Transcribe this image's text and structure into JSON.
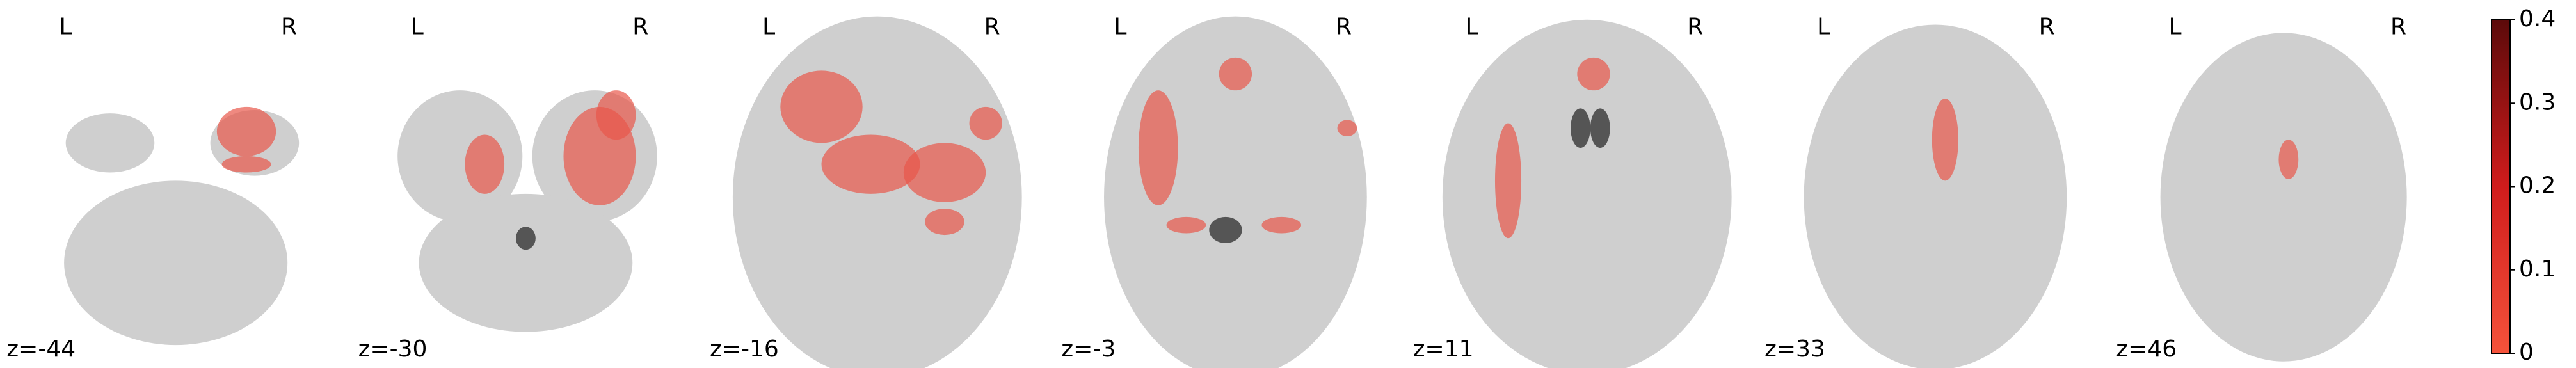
{
  "panels": [
    {
      "left": "L",
      "right": "R",
      "label": "z=-44"
    },
    {
      "left": "L",
      "right": "R",
      "label": "z=-30"
    },
    {
      "left": "L",
      "right": "R",
      "label": "z=-16"
    },
    {
      "left": "L",
      "right": "R",
      "label": "z=-3"
    },
    {
      "left": "L",
      "right": "R",
      "label": "z=11"
    },
    {
      "left": "L",
      "right": "R",
      "label": "z=33"
    },
    {
      "left": "L",
      "right": "R",
      "label": "z=46"
    }
  ],
  "colorbar": {
    "lim": [
      0,
      0.4
    ],
    "ticks": [
      0,
      0.1,
      0.2,
      0.3,
      0.4
    ]
  }
}
